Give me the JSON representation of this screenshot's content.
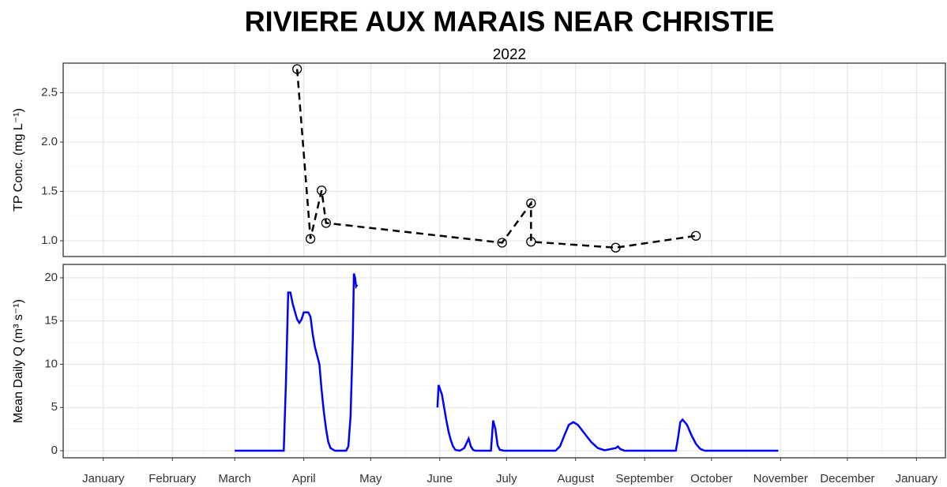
{
  "chart_data": [
    {
      "type": "line",
      "title": "RIVIERE AUX MARAIS NEAR CHRISTIE",
      "subtitle": "2022",
      "ylabel": "TP Conc. (mg L⁻¹)",
      "ylim": [
        0.84,
        2.8
      ],
      "yticks": [
        {
          "value": 1,
          "label": "1.0"
        },
        {
          "value": 1.5,
          "label": "1.5"
        },
        {
          "value": 2,
          "label": "2.0"
        },
        {
          "value": 2.5,
          "label": "2.5"
        }
      ],
      "series": [
        {
          "color": "#000000",
          "dashed": true,
          "markers": true,
          "x": [
            87,
            93,
            98,
            100,
            179,
            192,
            192,
            230,
            266
          ],
          "values": [
            2.74,
            1.02,
            1.51,
            1.18,
            0.98,
            1.38,
            0.99,
            0.93,
            1.05
          ]
        }
      ],
      "grid": true
    },
    {
      "type": "line",
      "ylabel": "Mean Daily Q (m³ s⁻¹)",
      "xlim": [
        -18,
        378
      ],
      "xticks": [
        {
          "value": 0,
          "label": "January"
        },
        {
          "value": 31,
          "label": "February"
        },
        {
          "value": 59,
          "label": "March"
        },
        {
          "value": 90,
          "label": "April"
        },
        {
          "value": 120,
          "label": "May"
        },
        {
          "value": 151,
          "label": "June"
        },
        {
          "value": 181,
          "label": "July"
        },
        {
          "value": 212,
          "label": "August"
        },
        {
          "value": 243,
          "label": "September"
        },
        {
          "value": 273,
          "label": "October"
        },
        {
          "value": 304,
          "label": "November"
        },
        {
          "value": 334,
          "label": "December"
        },
        {
          "value": 365,
          "label": "January"
        }
      ],
      "ylim": [
        -0.82,
        21.55
      ],
      "yticks": [
        0,
        5,
        10,
        15,
        20
      ],
      "series": [
        {
          "color": "#0000ff",
          "dashed": false,
          "markers": false,
          "x": [
            59,
            81,
            82,
            83,
            84,
            85,
            87,
            88,
            89,
            90,
            92,
            93,
            94,
            95,
            96,
            97,
            98,
            99,
            100,
            101,
            102,
            104,
            109,
            110,
            111,
            112,
            112.5,
            113,
            113.5,
            114,
            130,
            150,
            150.5,
            152,
            153,
            154,
            155,
            156,
            157,
            158,
            160,
            162,
            164,
            165,
            166,
            167,
            174,
            175,
            176,
            177,
            178,
            180,
            203,
            205,
            207,
            209,
            211,
            213,
            216,
            219,
            222,
            225,
            230,
            231,
            232,
            234,
            257,
            258,
            259,
            260,
            262,
            264,
            266,
            268,
            270,
            303
          ],
          "values": [
            0,
            0,
            8,
            18.3,
            18.3,
            17,
            15.2,
            14.8,
            15.2,
            16,
            16,
            15.5,
            13.5,
            12,
            11,
            10,
            7,
            4.5,
            2.5,
            1,
            0.3,
            0,
            0,
            0.5,
            4,
            13,
            20.5,
            20,
            19,
            19.2,
            null,
            5,
            7.6,
            6.5,
            5,
            3.5,
            2.2,
            1.2,
            0.5,
            0.1,
            0,
            0.3,
            1.4,
            0.5,
            0.1,
            0,
            0,
            3.5,
            2.5,
            0.6,
            0.1,
            0,
            0,
            0.5,
            1.8,
            3,
            3.3,
            3,
            2,
            1,
            0.3,
            0.05,
            0.3,
            0.5,
            0.2,
            0,
            0,
            1.5,
            3.3,
            3.6,
            3,
            1.8,
            0.8,
            0.2,
            0,
            0
          ]
        }
      ],
      "grid": true
    }
  ]
}
